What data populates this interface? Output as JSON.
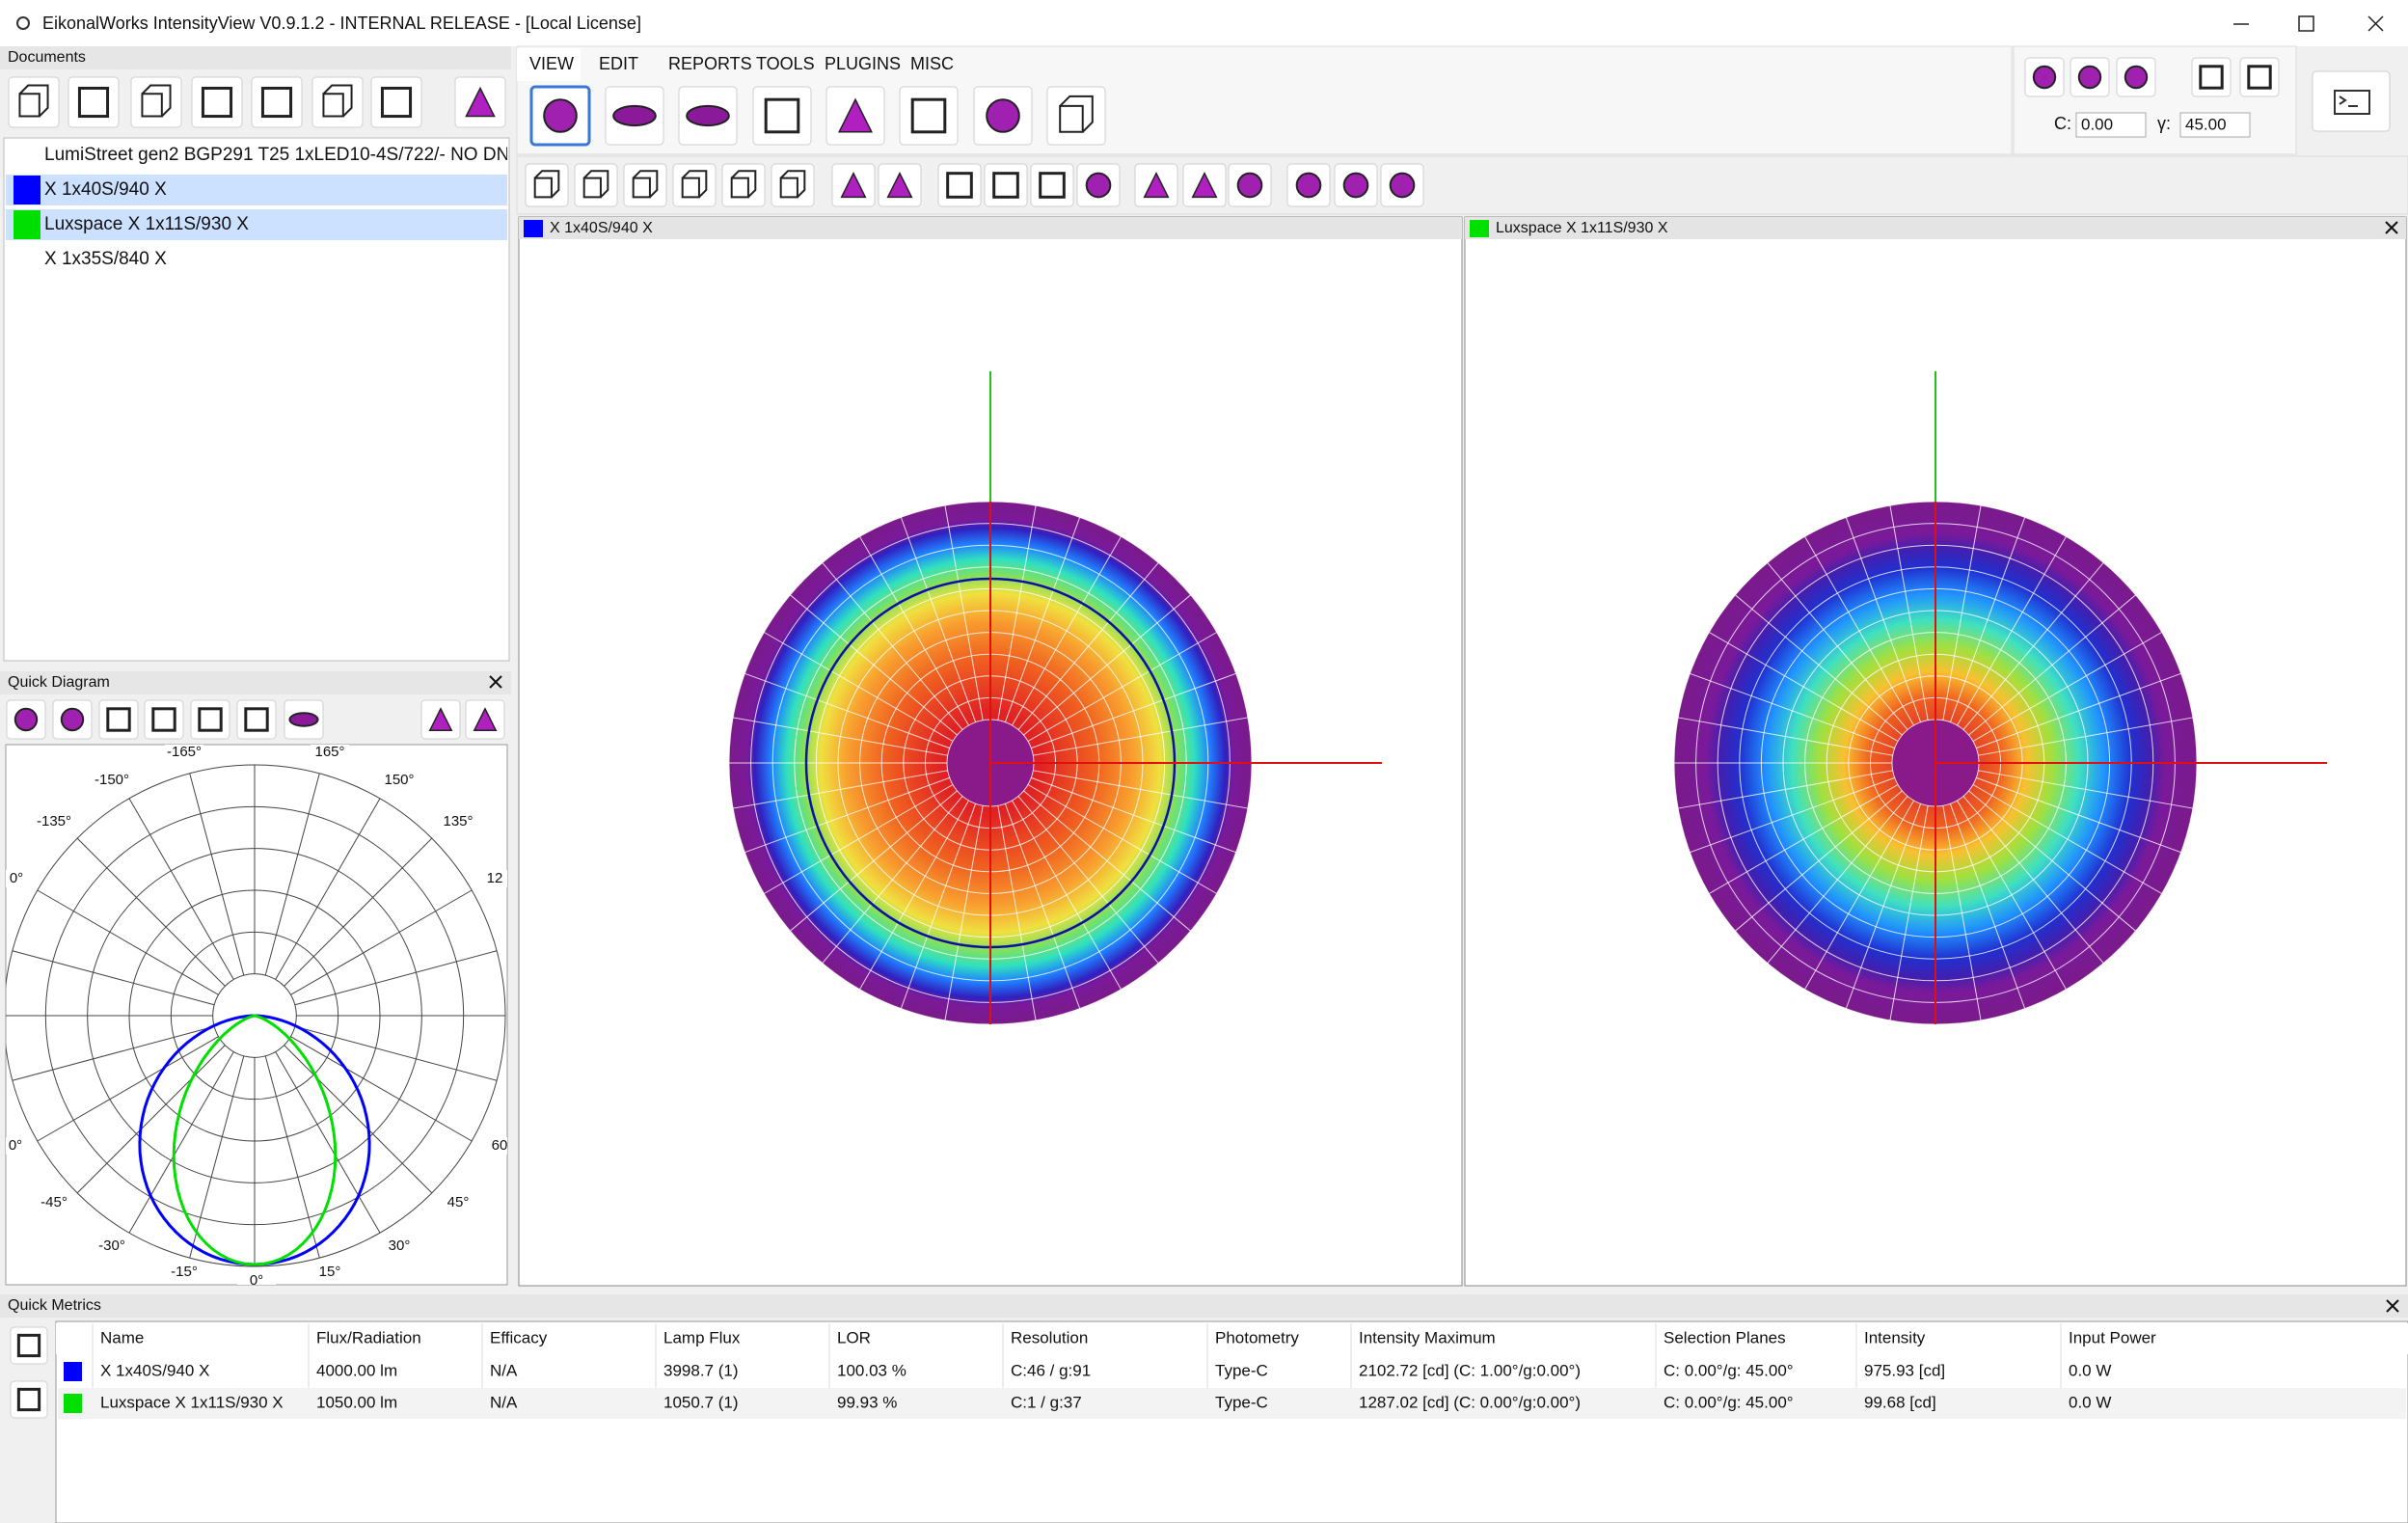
{
  "window": {
    "title": "EikonalWorks IntensityView V0.9.1.2 - INTERNAL RELEASE - [Local License]"
  },
  "documents": {
    "label": "Documents",
    "items": [
      {
        "name": "LumiStreet gen2 BGP291 T25 1xLED10-4S/722/- NO DN"
      },
      {
        "name": "X 1x40S/940 X",
        "color": "#0000ff",
        "selected": true
      },
      {
        "name": "Luxspace X 1x11S/930 X",
        "color": "#00e000",
        "selected": true
      },
      {
        "name": "X 1x35S/840 X"
      }
    ]
  },
  "menu": {
    "tabs": [
      "VIEW",
      "EDIT",
      "REPORTS",
      "TOOLS",
      "PLUGINS",
      "MISC"
    ]
  },
  "angles": {
    "c_label": "C:",
    "c_value": "0.00",
    "gamma_label": "γ:",
    "gamma_value": "45.00"
  },
  "views": [
    {
      "title": "X 1x40S/940 X",
      "color": "#0000ff"
    },
    {
      "title": "Luxspace X 1x11S/930 X",
      "color": "#00e000"
    }
  ],
  "quick_diagram": {
    "label": "Quick Diagram",
    "angle_labels": [
      "-165°",
      "165°",
      "-150°",
      "150°",
      "-135°",
      "135°",
      "0°",
      "12",
      "0°",
      "60",
      "-45°",
      "45°",
      "-30°",
      "30°",
      "-15°",
      "15°",
      "0°"
    ]
  },
  "quick_metrics": {
    "label": "Quick Metrics",
    "columns": [
      "Name",
      "Flux/Radiation",
      "Efficacy",
      "Lamp Flux",
      "LOR",
      "Resolution",
      "Photometry",
      "Intensity Maximum",
      "Selection Planes",
      "Intensity",
      "Input Power"
    ],
    "rows": [
      {
        "color": "#0000ff",
        "cells": [
          "X 1x40S/940 X",
          "4000.00 lm",
          "N/A",
          "3998.7 (1)",
          "100.03 %",
          "C:46 / g:91",
          "Type-C",
          "2102.72 [cd] (C: 1.00°/g:0.00°)",
          "C: 0.00°/g: 45.00°",
          "975.93 [cd]",
          "0.0 W"
        ]
      },
      {
        "color": "#00e000",
        "cells": [
          "Luxspace X 1x11S/930 X",
          "1050.00 lm",
          "N/A",
          "1050.7 (1)",
          "99.93 %",
          "C:1 / g:37",
          "Type-C",
          "1287.02 [cd] (C: 0.00°/g:0.00°)",
          "C: 0.00°/g: 45.00°",
          "99.68 [cd]",
          "0.0 W"
        ]
      }
    ]
  }
}
